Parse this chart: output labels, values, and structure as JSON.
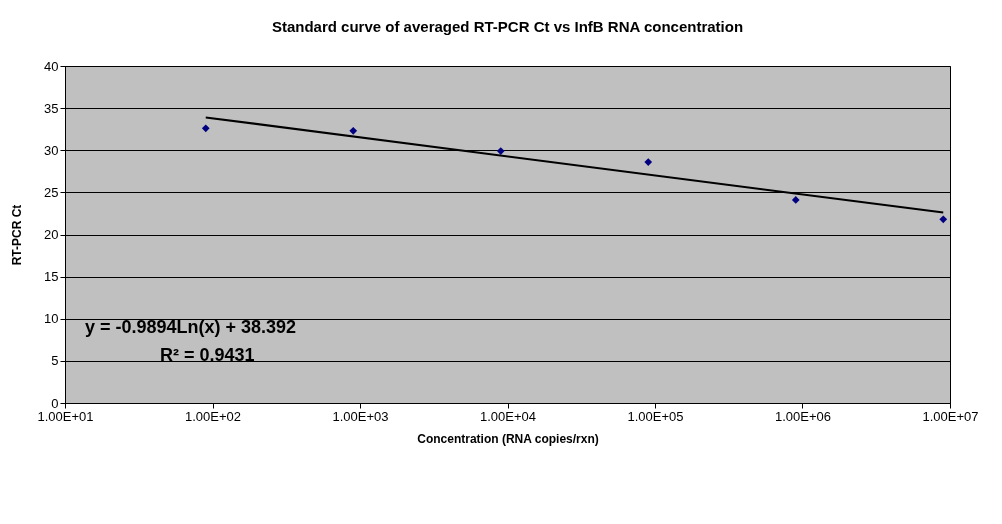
{
  "chart_data": {
    "type": "scatter",
    "title": "Standard curve of averaged RT-PCR Ct vs InfB RNA concentration",
    "xlabel": "Concentration (RNA copies/rxn)",
    "ylabel": "RT-PCR Ct",
    "log": "x",
    "grid": "y",
    "xlim": [
      10,
      10000000
    ],
    "xticks": [
      {
        "value": 10,
        "label": "1.00E+01"
      },
      {
        "value": 100,
        "label": "1.00E+02"
      },
      {
        "value": 1000,
        "label": "1.00E+03"
      },
      {
        "value": 10000,
        "label": "1.00E+04"
      },
      {
        "value": 100000,
        "label": "1.00E+05"
      },
      {
        "value": 1000000,
        "label": "1.00E+06"
      },
      {
        "value": 10000000,
        "label": "1.00E+07"
      }
    ],
    "ylim": [
      0,
      40
    ],
    "yticks": [
      0,
      5,
      10,
      15,
      20,
      25,
      30,
      35,
      40
    ],
    "series": [
      {
        "color": "#000080",
        "marker": "diamond",
        "x": [
          90,
          900,
          9000,
          90000,
          900000,
          9000000
        ],
        "values": [
          32.6,
          32.3,
          29.9,
          28.6,
          24.1,
          21.8
        ]
      },
      {
        "type": "line",
        "color": "#000000",
        "marker": "none",
        "x": [
          90,
          9000000
        ],
        "values": [
          33.9,
          22.6
        ]
      }
    ],
    "annotations": [
      "y = -0.9894Ln(x) + 38.392",
      "R² = 0.9431"
    ]
  }
}
